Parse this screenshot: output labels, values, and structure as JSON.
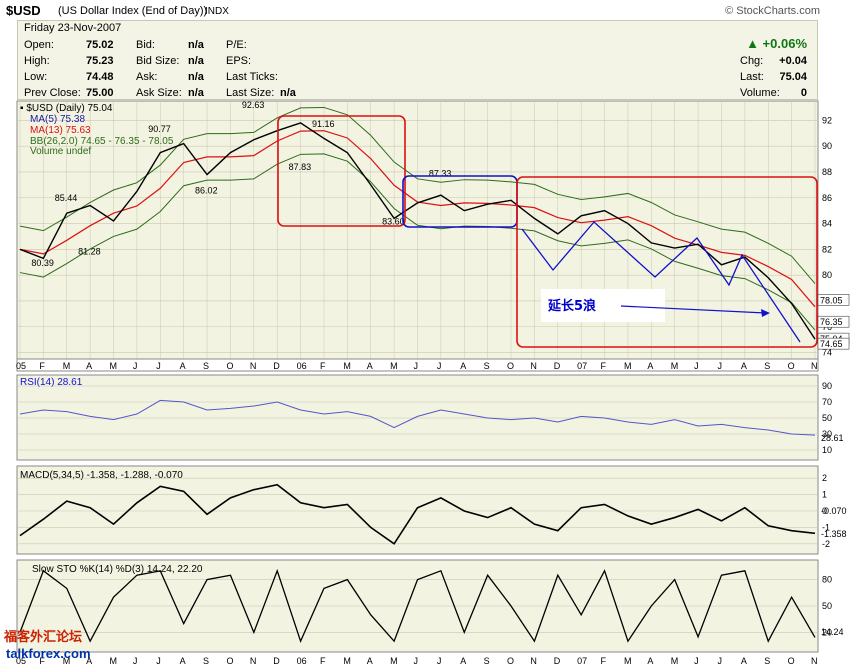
{
  "header": {
    "symbol": "$USD",
    "name": "(US Dollar Index (End of Day))",
    "exchange": "INDX",
    "source": "© StockCharts.com"
  },
  "quote": {
    "date": "Friday   23-Nov-2007",
    "open_label": "Open:",
    "open": "75.02",
    "high_label": "High:",
    "high": "75.23",
    "low_label": "Low:",
    "low": "74.48",
    "prev_label": "Prev Close:",
    "prev": "75.00",
    "bid_label": "Bid:",
    "bid": "n/a",
    "bidsize_label": "Bid Size:",
    "bidsize": "n/a",
    "ask_label": "Ask:",
    "ask": "n/a",
    "asksize_label": "Ask Size:",
    "asksize": "n/a",
    "pe_label": "P/E:",
    "eps_label": "EPS:",
    "lastticks_label": "Last Ticks:",
    "lastsize_label": "Last Size:",
    "lastsize": "n/a",
    "pct": "+0.06%",
    "chg_label": "Chg:",
    "chg": "+0.04",
    "last_label": "Last:",
    "last": "75.04",
    "vol_label": "Volume:",
    "vol": "0"
  },
  "colors": {
    "panel_bg": "#f3f3e2",
    "grid": "#c9c9b0",
    "price": "#000000",
    "ma5": "#1a1aa6",
    "ma13": "#dd1111",
    "bb": "#2d6b1a",
    "rsi": "#5555cc",
    "macd": "#000000",
    "signal": "#2222cc",
    "hist": "#4a5a20",
    "sto_k": "#000000",
    "sto_d": "#cc1111",
    "annot_red": "#dd1111",
    "annot_blue": "#1111cc"
  },
  "legend": {
    "title": "▪ $USD (Daily) 75.04",
    "ma5": "MA(5) 75.38",
    "ma13": "MA(13) 75.63",
    "bb": "BB(26,2.0) 74.65 - 76.35 - 78.05",
    "vol": "Volume undef"
  },
  "rsi_title": "RSI(14) 28.61",
  "macd_title": "MACD(5,34,5) -1.358, -1.288, -0.070",
  "sto_title": "Slow STO %K(14) %D(3) 14.24, 22.20",
  "annotation": "延长5浪",
  "watermark_cn": "福客外汇论坛",
  "watermark_en": "talkforex.com",
  "chart_data": [
    {
      "type": "line",
      "title": "$USD (Daily) 75.04",
      "x": [
        "2005-01",
        "2005-02",
        "2005-03",
        "2005-04",
        "2005-05",
        "2005-06",
        "2005-07",
        "2005-08",
        "2005-09",
        "2005-10",
        "2005-11",
        "2005-12",
        "2006-01",
        "2006-02",
        "2006-03",
        "2006-04",
        "2006-05",
        "2006-06",
        "2006-07",
        "2006-08",
        "2006-09",
        "2006-10",
        "2006-11",
        "2006-12",
        "2007-01",
        "2007-02",
        "2007-03",
        "2007-04",
        "2007-05",
        "2007-06",
        "2007-07",
        "2007-08",
        "2007-09",
        "2007-10",
        "2007-11"
      ],
      "series": [
        {
          "name": "$USD",
          "values": [
            82.0,
            81.3,
            84.8,
            85.4,
            84.2,
            86.5,
            89.5,
            90.2,
            87.8,
            89.5,
            90.5,
            91.2,
            91.8,
            90.6,
            89.5,
            87.0,
            84.4,
            85.6,
            86.2,
            85.0,
            85.5,
            85.8,
            84.4,
            83.2,
            84.6,
            85.0,
            84.0,
            82.5,
            82.1,
            82.4,
            80.8,
            81.4,
            79.8,
            77.8,
            75.04
          ]
        }
      ],
      "annotations_price": [
        {
          "date": "2005-02",
          "value": "80.39"
        },
        {
          "date": "2005-03",
          "value": "85.44"
        },
        {
          "date": "2005-04",
          "value": "81.28"
        },
        {
          "date": "2005-07",
          "value": "90.77"
        },
        {
          "date": "2005-09",
          "value": "86.02"
        },
        {
          "date": "2005-11",
          "value": "92.63"
        },
        {
          "date": "2006-01",
          "value": "87.83"
        },
        {
          "date": "2006-02",
          "value": "91.16"
        },
        {
          "date": "2006-05",
          "value": "83.60"
        },
        {
          "date": "2006-07",
          "value": "87.33"
        }
      ],
      "ylim": [
        73.5,
        93.5
      ],
      "y_ticks": [
        "92",
        "90",
        "88",
        "86",
        "84",
        "82",
        "80",
        "78",
        "76",
        "74"
      ],
      "right_labels": [
        "78.05",
        "76.35",
        "75.04",
        "74.65"
      ],
      "x_tick_labels": [
        "05",
        "F",
        "M",
        "A",
        "M",
        "J",
        "J",
        "A",
        "S",
        "O",
        "N",
        "D",
        "06",
        "F",
        "M",
        "A",
        "M",
        "J",
        "J",
        "A",
        "S",
        "O",
        "N",
        "D",
        "07",
        "F",
        "M",
        "A",
        "M",
        "J",
        "J",
        "A",
        "S",
        "O",
        "N"
      ]
    },
    {
      "type": "line",
      "title": "RSI(14) 28.61",
      "ylim": [
        0,
        100
      ],
      "y_ticks": [
        "90",
        "70",
        "50",
        "30",
        "10"
      ],
      "series": [
        {
          "name": "RSI",
          "values": [
            55,
            60,
            58,
            52,
            48,
            55,
            72,
            70,
            60,
            62,
            65,
            70,
            60,
            55,
            58,
            52,
            38,
            52,
            60,
            55,
            50,
            48,
            50,
            45,
            52,
            50,
            45,
            42,
            48,
            40,
            42,
            38,
            35,
            30,
            28.61
          ]
        }
      ]
    },
    {
      "type": "line",
      "title": "MACD(5,34,5) -1.358, -1.288, -0.070",
      "ylim": [
        -2.5,
        2.5
      ],
      "y_ticks": [
        "2",
        "1",
        "0",
        "-1",
        "-2"
      ],
      "series": [
        {
          "name": "MACD",
          "values": [
            -1.5,
            -0.5,
            0.6,
            0.2,
            -0.8,
            0.5,
            1.5,
            1.2,
            -0.2,
            0.8,
            1.3,
            1.6,
            0.5,
            0.2,
            0.4,
            -1.0,
            -2.0,
            0.2,
            0.8,
            0.0,
            -0.4,
            0.2,
            -0.8,
            -1.2,
            0.2,
            0.4,
            -0.3,
            -0.8,
            -0.4,
            0.1,
            -0.6,
            0.2,
            -0.9,
            -1.2,
            -1.358
          ]
        }
      ]
    },
    {
      "type": "line",
      "title": "Slow STO %K(14) %D(3) 14.24, 22.20",
      "ylim": [
        0,
        100
      ],
      "y_ticks": [
        "80",
        "50",
        "20"
      ],
      "series": [
        {
          "name": "%K",
          "values": [
            20,
            90,
            70,
            10,
            60,
            85,
            90,
            30,
            80,
            85,
            20,
            90,
            10,
            70,
            80,
            40,
            10,
            80,
            90,
            20,
            85,
            50,
            10,
            85,
            40,
            90,
            10,
            50,
            80,
            15,
            85,
            90,
            10,
            60,
            14.24
          ]
        }
      ]
    }
  ]
}
